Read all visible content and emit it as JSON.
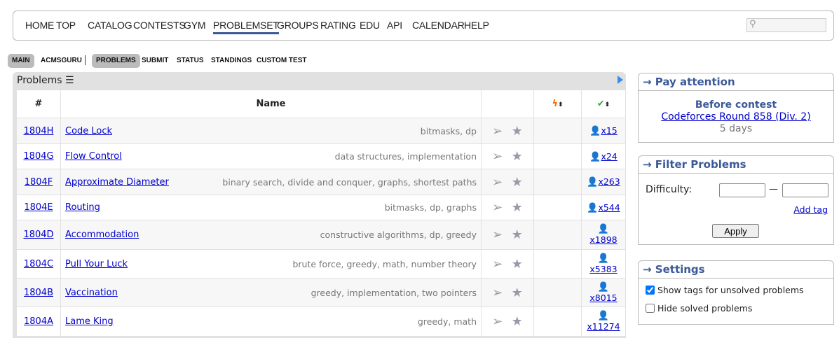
{
  "nav": {
    "items": [
      "HOME",
      "TOP",
      "CATALOG",
      "CONTESTS",
      "GYM",
      "PROBLEMSET",
      "GROUPS",
      "RATING",
      "EDU",
      "API",
      "CALENDAR",
      "HELP"
    ],
    "active": "PROBLEMSET"
  },
  "submenu": {
    "items": [
      "MAIN",
      "ACMSGURU",
      "PROBLEMS",
      "SUBMIT",
      "STATUS",
      "STANDINGS",
      "CUSTOM TEST"
    ]
  },
  "panel": {
    "title": "Problems"
  },
  "table": {
    "headers": {
      "id": "#",
      "name": "Name"
    },
    "rows": [
      {
        "id": "1804H",
        "name": "Code Lock",
        "tags": "bitmasks, dp",
        "solved": "x15"
      },
      {
        "id": "1804G",
        "name": "Flow Control",
        "tags": "data structures, implementation",
        "solved": "x24"
      },
      {
        "id": "1804F",
        "name": "Approximate Diameter",
        "tags": "binary search, divide and conquer, graphs, shortest paths",
        "solved": "x263"
      },
      {
        "id": "1804E",
        "name": "Routing",
        "tags": "bitmasks, dp, graphs",
        "solved": "x544"
      },
      {
        "id": "1804D",
        "name": "Accommodation",
        "tags": "constructive algorithms, dp, greedy",
        "solved": "x1898"
      },
      {
        "id": "1804C",
        "name": "Pull Your Luck",
        "tags": "brute force, greedy, math, number theory",
        "solved": "x5383"
      },
      {
        "id": "1804B",
        "name": "Vaccination",
        "tags": "greedy, implementation, two pointers",
        "solved": "x8015"
      },
      {
        "id": "1804A",
        "name": "Lame King",
        "tags": "greedy, math",
        "solved": "x11274"
      }
    ]
  },
  "pay_attention": {
    "title": "→ Pay attention",
    "heading": "Before contest",
    "contest": "Codeforces Round 858 (Div. 2)",
    "time": "5 days"
  },
  "filter": {
    "title": "→ Filter Problems",
    "difficulty_label": "Difficulty:",
    "dash": "—",
    "add_tag": "Add tag",
    "apply": "Apply"
  },
  "settings": {
    "title": "→ Settings",
    "show_tags": "Show tags for unsolved problems",
    "show_tags_checked": true,
    "hide_solved": "Hide solved problems",
    "hide_solved_checked": false
  }
}
